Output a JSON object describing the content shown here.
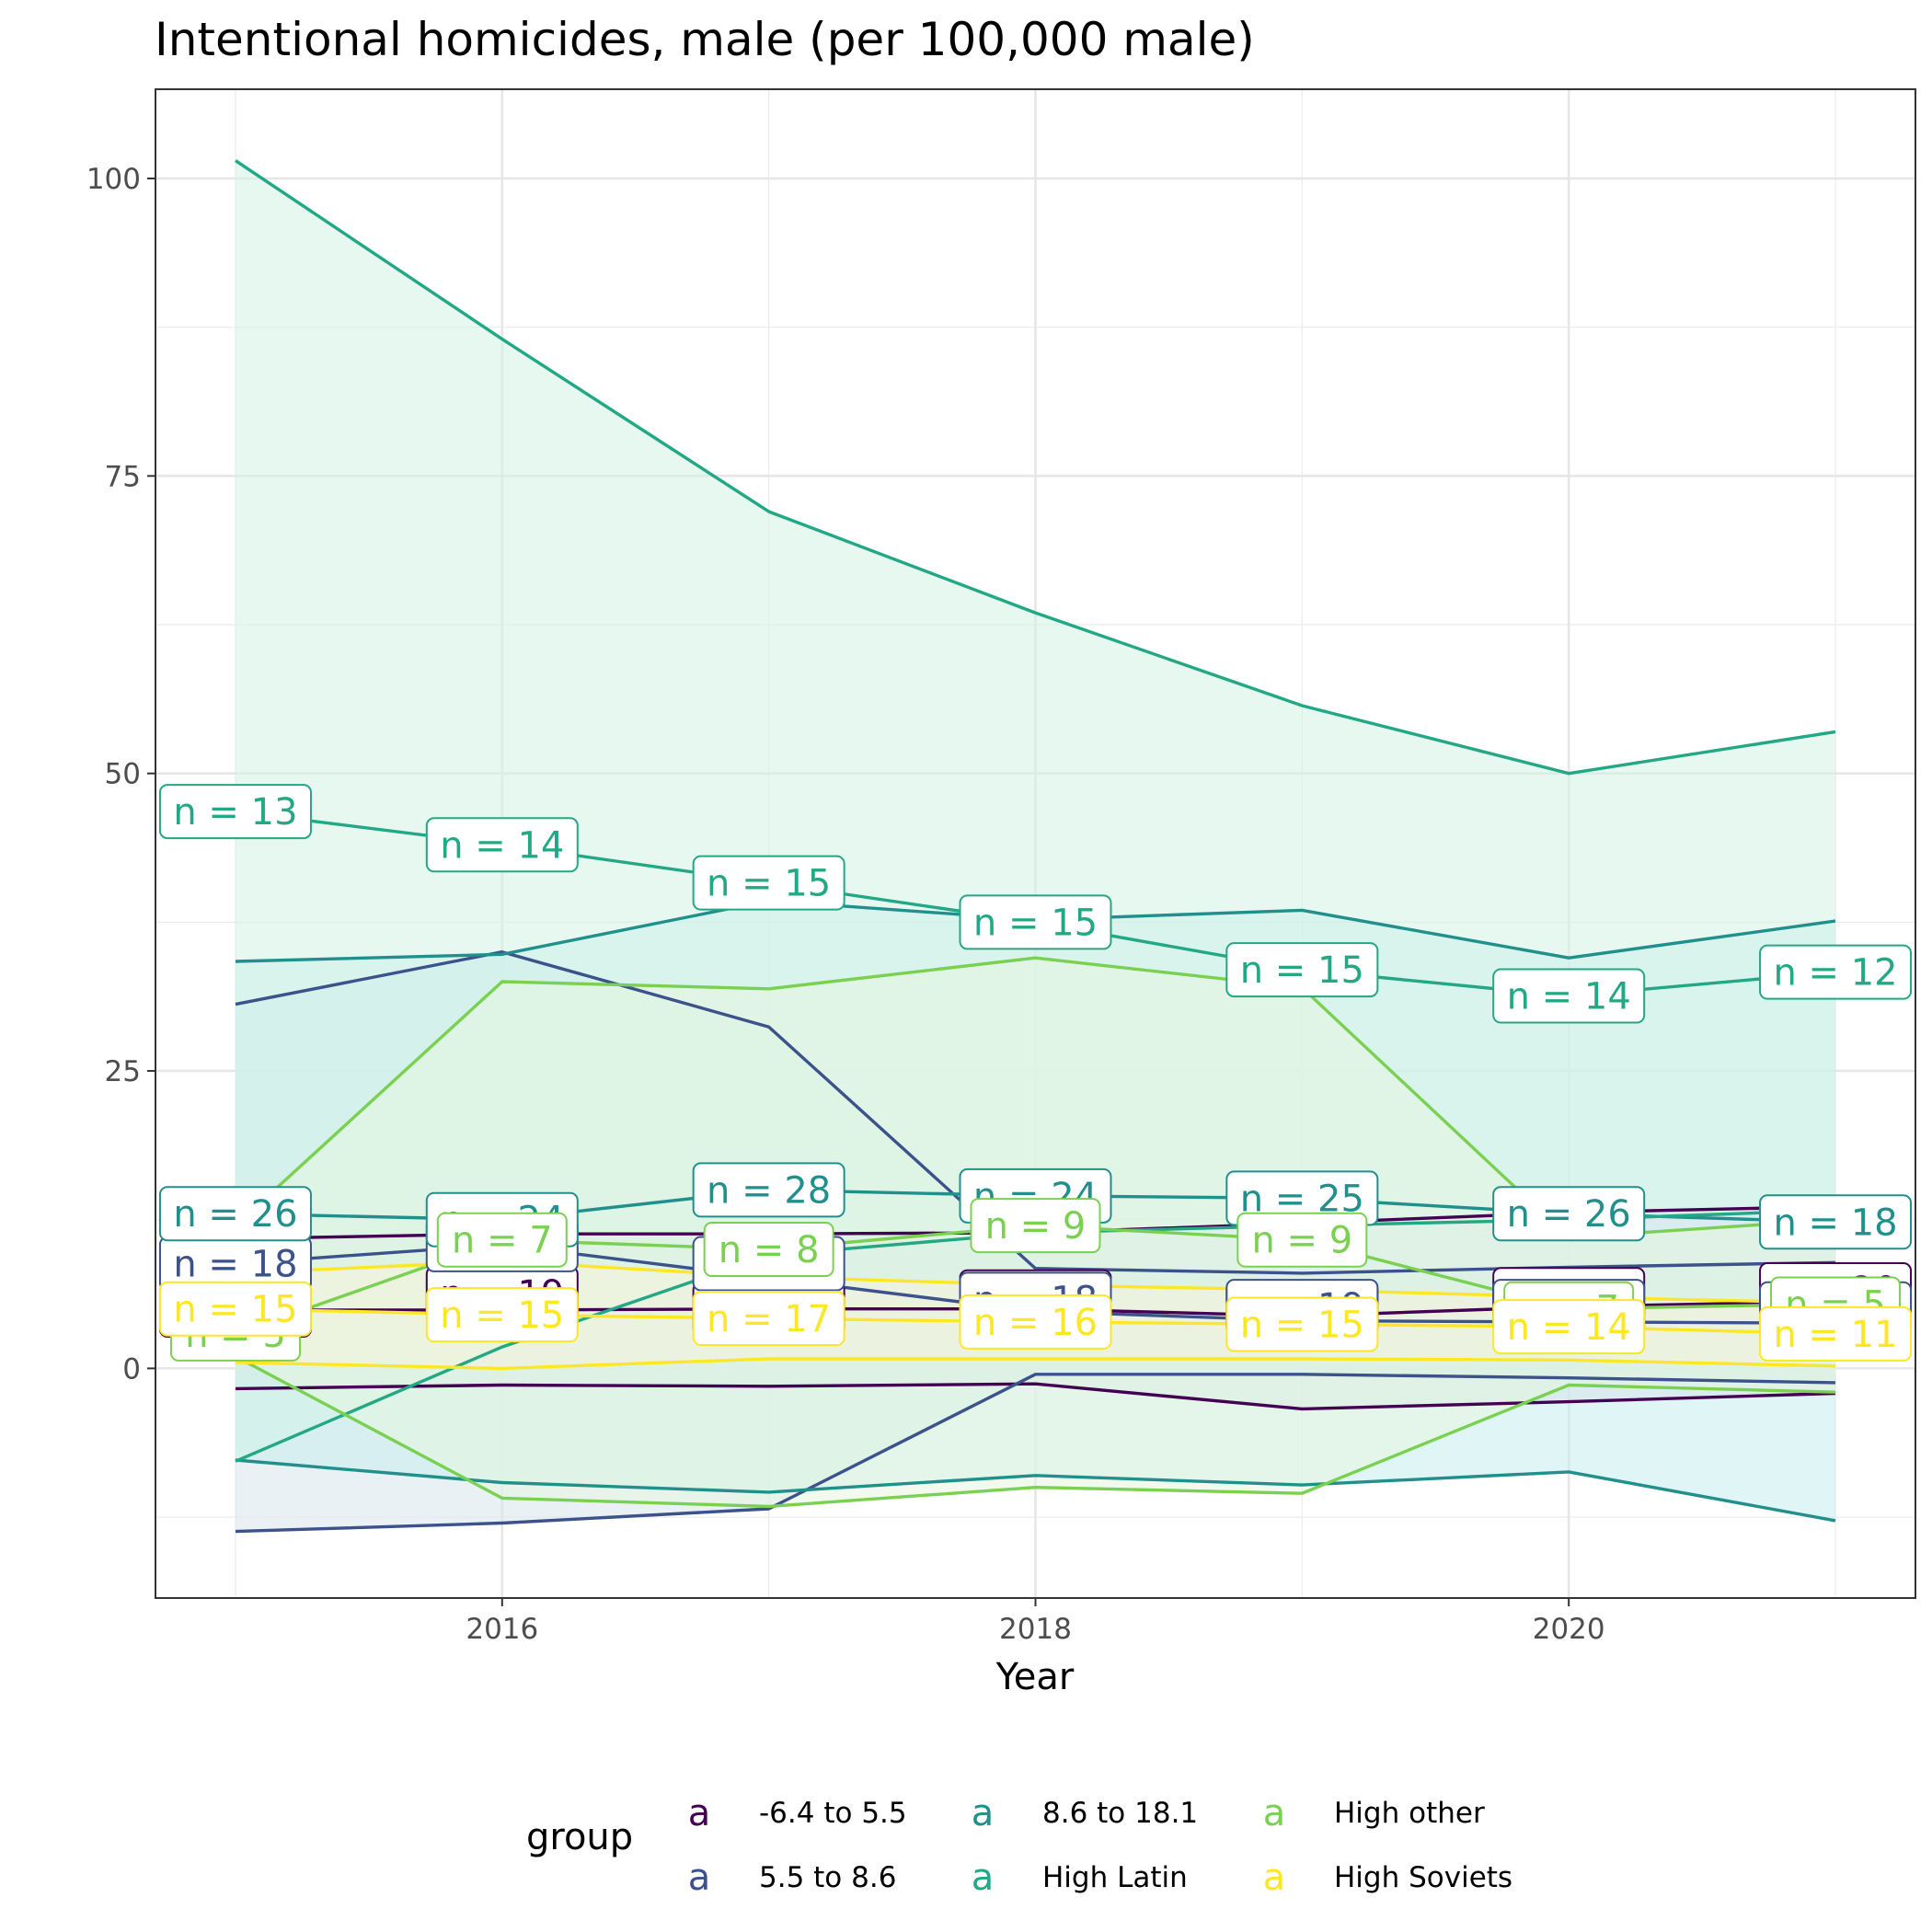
{
  "chart_data": {
    "type": "line",
    "title": "Intentional homicides, male (per 100,000 male)",
    "xlabel": "Year",
    "ylabel": "",
    "x_ticks": [
      2016,
      2018,
      2020
    ],
    "y_ticks": [
      0,
      25,
      50,
      75,
      100
    ],
    "xlim": [
      2014.7,
      2021.3
    ],
    "ylim": [
      -19.3,
      107.5
    ],
    "grid": true,
    "legend": {
      "title": "group",
      "placement": "bottom",
      "key_glyph": "a",
      "entries": [
        "-6.4 to 5.5",
        "5.5 to 8.6",
        "8.6 to 18.1",
        "High Latin",
        "High other",
        "High Soviets"
      ]
    },
    "x": [
      2015,
      2016,
      2017,
      2018,
      2019,
      2020,
      2021
    ],
    "series": [
      {
        "name": "-6.4 to 5.5",
        "color": "#440154",
        "fill": "#e6dcea",
        "mean": [
          4.9,
          4.9,
          5.0,
          5.0,
          4.4,
          5.2,
          5.6
        ],
        "upper": [
          10.9,
          11.3,
          11.3,
          11.4,
          12.2,
          13.1,
          13.6
        ],
        "lower": [
          -1.7,
          -1.4,
          -1.5,
          -1.3,
          -3.4,
          -2.8,
          -2.1
        ],
        "labels": [
          "n = 20",
          "n = 19",
          "n = 20",
          "n = 20",
          "n = 21",
          "n = 19",
          "n = 20"
        ],
        "label_y": [
          4.9,
          6.3,
          5.0,
          6.0,
          5.0,
          6.2,
          6.6
        ]
      },
      {
        "name": "5.5 to 8.6",
        "color": "#3b528b",
        "fill": "#d9e6ec",
        "mean": [
          8.8,
          10.4,
          7.6,
          4.8,
          4.0,
          3.9,
          3.8
        ],
        "upper": [
          30.6,
          35.0,
          28.7,
          8.4,
          8.0,
          8.5,
          8.9
        ],
        "lower": [
          -13.7,
          -13.0,
          -11.8,
          -0.5,
          -0.5,
          -0.8,
          -1.2
        ],
        "labels": [
          "n = 18",
          "n = 21",
          "n = 19",
          "n = 18",
          "n = 19",
          "n = 18",
          "n = 19"
        ],
        "label_y": [
          8.8,
          10.4,
          8.8,
          5.8,
          5.2,
          5.2,
          5.0
        ]
      },
      {
        "name": "8.6 to 18.1",
        "color": "#21908c",
        "fill": "#c7ecec",
        "mean": [
          13.0,
          12.5,
          15.0,
          14.5,
          14.3,
          13.0,
          12.3
        ],
        "upper": [
          34.2,
          34.8,
          39.3,
          37.7,
          38.5,
          34.5,
          37.6
        ],
        "lower": [
          -7.7,
          -9.6,
          -10.4,
          -9.0,
          -9.8,
          -8.7,
          -12.8
        ],
        "labels": [
          "n = 26",
          "n = 24",
          "n = 28",
          "n = 24",
          "n = 25",
          "n = 26",
          "n = 18"
        ],
        "label_y": [
          13.0,
          12.5,
          15.0,
          14.5,
          14.3,
          13.0,
          12.3
        ]
      },
      {
        "name": "High Latin",
        "color": "#22a884",
        "fill": "#d4f2e6",
        "mean": [
          46.8,
          44.0,
          40.8,
          37.5,
          33.5,
          31.3,
          33.3
        ],
        "upper": [
          101.5,
          86.5,
          72.0,
          63.5,
          55.7,
          50.0,
          53.5
        ],
        "lower": [
          -7.8,
          1.8,
          9.5,
          11.4,
          12.0,
          12.5,
          13.3
        ],
        "labels": [
          "n = 13",
          "n = 14",
          "n = 15",
          "n = 15",
          "n = 15",
          "n = 14",
          "n = 12"
        ],
        "label_y": [
          46.8,
          44.0,
          40.8,
          37.5,
          33.5,
          31.3,
          33.3
        ]
      },
      {
        "name": "High other",
        "color": "#7ad151",
        "fill": "#e6f5df",
        "mean": [
          2.9,
          10.8,
          10.0,
          12.0,
          10.8,
          5.0,
          5.4
        ],
        "upper": [
          12.0,
          32.5,
          31.9,
          34.5,
          32.0,
          11.0,
          12.5
        ],
        "lower": [
          1.0,
          -10.9,
          -11.6,
          -10.0,
          -10.5,
          -1.4,
          -2.0
        ],
        "labels": [
          "n = 5",
          "n = 7",
          "n = 8",
          "n = 9",
          "n = 9",
          "n = 7",
          "n = 5"
        ],
        "label_y": [
          2.9,
          10.8,
          10.0,
          12.0,
          10.8,
          5.0,
          5.4
        ]
      },
      {
        "name": "High Soviets",
        "color": "#fde725",
        "fill": "#f8f3dc",
        "mean": [
          5.0,
          4.5,
          4.2,
          3.9,
          3.7,
          3.5,
          2.9
        ],
        "upper": [
          8.0,
          9.0,
          7.7,
          7.0,
          6.6,
          6.0,
          5.5
        ],
        "lower": [
          0.5,
          0.0,
          0.8,
          0.8,
          0.8,
          0.7,
          0.2
        ],
        "labels": [
          "n = 15",
          "n = 15",
          "n = 17",
          "n = 16",
          "n = 15",
          "n = 14",
          "n = 11"
        ],
        "label_y": [
          5.0,
          4.5,
          4.2,
          3.9,
          3.7,
          3.5,
          2.9
        ]
      }
    ]
  }
}
